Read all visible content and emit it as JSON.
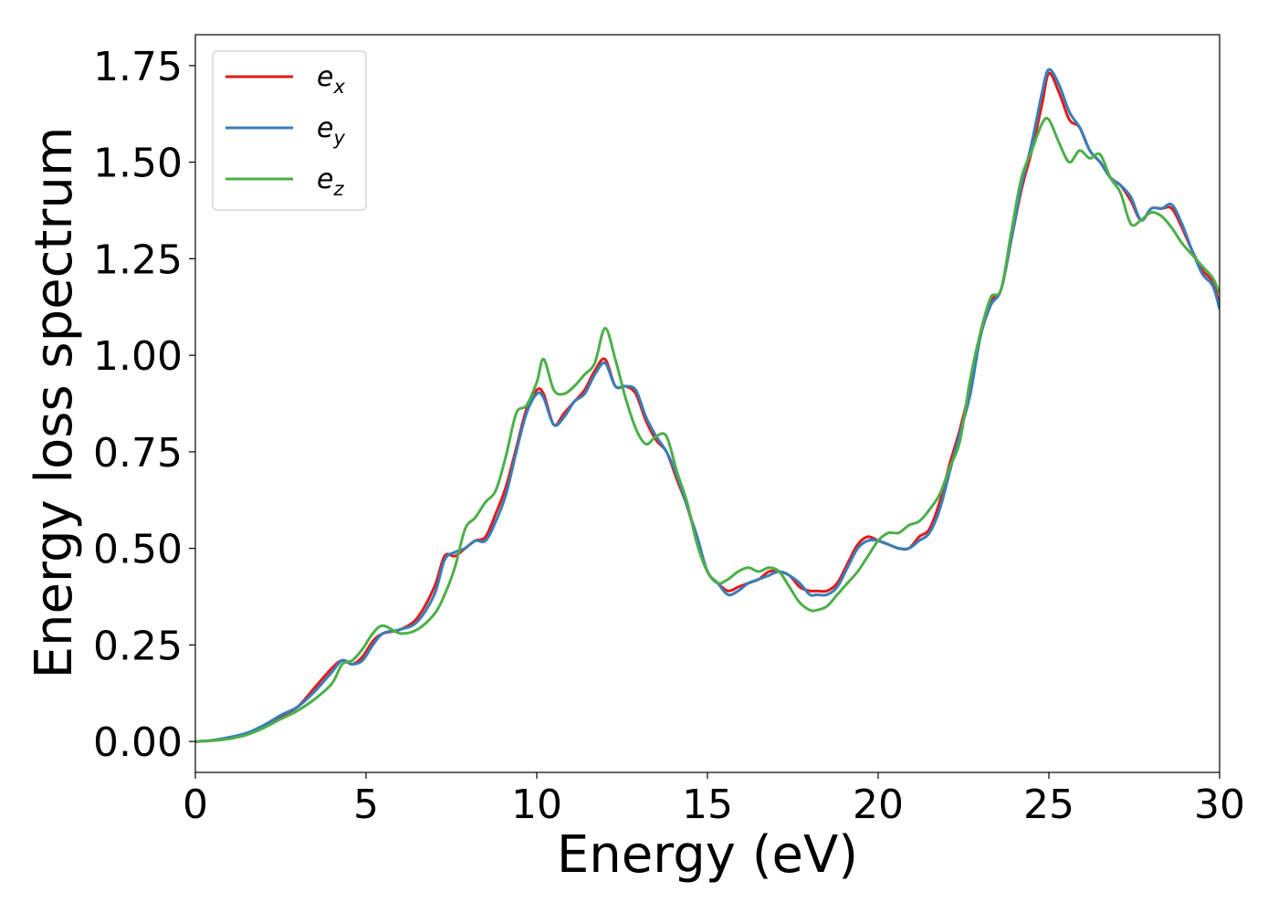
{
  "chart_data": {
    "type": "line",
    "title": "",
    "xlabel": "Energy (eV)",
    "ylabel": "Energy loss spectrum",
    "xlim": [
      0,
      30
    ],
    "ylim": [
      -0.08,
      1.83
    ],
    "x_ticks": [
      "0",
      "5",
      "10",
      "15",
      "20",
      "25",
      "30"
    ],
    "y_ticks": [
      "0.00",
      "0.25",
      "0.50",
      "0.75",
      "1.00",
      "1.25",
      "1.50",
      "1.75"
    ],
    "grid": false,
    "legend_position": "top-left",
    "series": [
      {
        "name": "e",
        "subscript": "x",
        "color": "#e41a1c",
        "x": [
          0,
          0.5,
          1,
          1.5,
          2,
          2.5,
          3,
          3.5,
          4,
          4.3,
          4.6,
          4.9,
          5.2,
          5.5,
          6,
          6.5,
          7,
          7.3,
          7.6,
          7.9,
          8.2,
          8.5,
          8.8,
          9.1,
          9.4,
          9.7,
          10,
          10.2,
          10.5,
          10.8,
          11.1,
          11.4,
          11.7,
          12,
          12.3,
          12.6,
          12.9,
          13.2,
          13.5,
          13.8,
          14.1,
          14.4,
          14.7,
          15,
          15.3,
          15.6,
          15.9,
          16.2,
          16.5,
          16.8,
          17.1,
          17.4,
          17.7,
          18,
          18.2,
          18.5,
          18.8,
          19.1,
          19.4,
          19.7,
          20,
          20.3,
          20.6,
          20.9,
          21.2,
          21.5,
          21.8,
          22.1,
          22.4,
          22.7,
          23,
          23.3,
          23.6,
          23.9,
          24.2,
          24.5,
          24.8,
          25,
          25.3,
          25.6,
          25.9,
          26.2,
          26.5,
          26.8,
          27.1,
          27.4,
          27.7,
          28,
          28.3,
          28.6,
          28.9,
          29.2,
          29.5,
          29.8,
          30
        ],
        "values": [
          0,
          0.003,
          0.01,
          0.02,
          0.04,
          0.065,
          0.09,
          0.14,
          0.19,
          0.21,
          0.2,
          0.22,
          0.26,
          0.28,
          0.29,
          0.32,
          0.4,
          0.48,
          0.48,
          0.5,
          0.52,
          0.53,
          0.59,
          0.66,
          0.76,
          0.86,
          0.91,
          0.9,
          0.82,
          0.85,
          0.88,
          0.91,
          0.96,
          0.99,
          0.92,
          0.92,
          0.9,
          0.83,
          0.78,
          0.75,
          0.68,
          0.61,
          0.52,
          0.44,
          0.41,
          0.39,
          0.4,
          0.41,
          0.42,
          0.44,
          0.44,
          0.43,
          0.4,
          0.39,
          0.39,
          0.39,
          0.41,
          0.46,
          0.51,
          0.53,
          0.52,
          0.51,
          0.5,
          0.5,
          0.53,
          0.55,
          0.62,
          0.72,
          0.81,
          0.92,
          1.06,
          1.14,
          1.17,
          1.3,
          1.43,
          1.53,
          1.65,
          1.73,
          1.68,
          1.61,
          1.59,
          1.53,
          1.5,
          1.46,
          1.44,
          1.4,
          1.35,
          1.38,
          1.38,
          1.38,
          1.33,
          1.27,
          1.22,
          1.19,
          1.13
        ]
      },
      {
        "name": "e",
        "subscript": "y",
        "color": "#377eb8",
        "x": [
          0,
          0.5,
          1,
          1.5,
          2,
          2.5,
          3,
          3.5,
          4,
          4.3,
          4.6,
          4.9,
          5.2,
          5.5,
          6,
          6.5,
          7,
          7.3,
          7.6,
          7.9,
          8.2,
          8.5,
          8.8,
          9.1,
          9.4,
          9.7,
          10,
          10.2,
          10.5,
          10.8,
          11.1,
          11.4,
          11.7,
          12,
          12.3,
          12.6,
          12.9,
          13.2,
          13.5,
          13.8,
          14.1,
          14.4,
          14.7,
          15,
          15.3,
          15.6,
          15.9,
          16.2,
          16.5,
          16.8,
          17.1,
          17.4,
          17.7,
          18,
          18.2,
          18.5,
          18.8,
          19.1,
          19.4,
          19.7,
          20,
          20.3,
          20.6,
          20.9,
          21.2,
          21.5,
          21.8,
          22.1,
          22.4,
          22.7,
          23,
          23.3,
          23.6,
          23.9,
          24.2,
          24.5,
          24.8,
          25,
          25.3,
          25.6,
          25.9,
          26.2,
          26.5,
          26.8,
          27.1,
          27.4,
          27.7,
          28,
          28.3,
          28.6,
          28.9,
          29.2,
          29.5,
          29.8,
          30
        ],
        "values": [
          0,
          0.003,
          0.011,
          0.022,
          0.042,
          0.068,
          0.09,
          0.13,
          0.18,
          0.21,
          0.2,
          0.21,
          0.25,
          0.28,
          0.29,
          0.31,
          0.38,
          0.47,
          0.49,
          0.5,
          0.52,
          0.52,
          0.57,
          0.64,
          0.75,
          0.85,
          0.9,
          0.89,
          0.82,
          0.84,
          0.88,
          0.9,
          0.95,
          0.98,
          0.92,
          0.92,
          0.91,
          0.84,
          0.79,
          0.75,
          0.69,
          0.61,
          0.53,
          0.44,
          0.41,
          0.38,
          0.39,
          0.41,
          0.42,
          0.43,
          0.44,
          0.43,
          0.41,
          0.38,
          0.38,
          0.38,
          0.4,
          0.45,
          0.5,
          0.52,
          0.52,
          0.51,
          0.5,
          0.5,
          0.52,
          0.54,
          0.6,
          0.7,
          0.8,
          0.9,
          1.05,
          1.13,
          1.17,
          1.3,
          1.44,
          1.55,
          1.68,
          1.74,
          1.7,
          1.63,
          1.59,
          1.53,
          1.5,
          1.46,
          1.44,
          1.41,
          1.35,
          1.38,
          1.38,
          1.39,
          1.34,
          1.27,
          1.21,
          1.18,
          1.12
        ]
      },
      {
        "name": "e",
        "subscript": "z",
        "color": "#4daf4a",
        "x": [
          0,
          0.5,
          1,
          1.5,
          2,
          2.5,
          3,
          3.5,
          4,
          4.3,
          4.6,
          4.9,
          5.2,
          5.5,
          6,
          6.5,
          7,
          7.3,
          7.6,
          7.9,
          8.2,
          8.5,
          8.8,
          9.1,
          9.4,
          9.7,
          10,
          10.2,
          10.5,
          10.8,
          11.1,
          11.4,
          11.7,
          12,
          12.3,
          12.6,
          12.9,
          13.2,
          13.5,
          13.8,
          14.1,
          14.4,
          14.7,
          15,
          15.3,
          15.6,
          15.9,
          16.2,
          16.5,
          16.8,
          17.1,
          17.4,
          17.7,
          18,
          18.2,
          18.5,
          18.8,
          19.1,
          19.4,
          19.7,
          20,
          20.3,
          20.6,
          20.9,
          21.2,
          21.5,
          21.8,
          22.1,
          22.4,
          22.7,
          23,
          23.3,
          23.6,
          23.9,
          24.2,
          24.5,
          24.8,
          25,
          25.3,
          25.6,
          25.9,
          26.2,
          26.5,
          26.8,
          27.1,
          27.4,
          27.7,
          28,
          28.3,
          28.6,
          28.9,
          29.2,
          29.5,
          29.8,
          30
        ],
        "values": [
          0,
          0.002,
          0.007,
          0.017,
          0.035,
          0.058,
          0.08,
          0.11,
          0.15,
          0.2,
          0.21,
          0.24,
          0.28,
          0.3,
          0.28,
          0.29,
          0.33,
          0.38,
          0.45,
          0.55,
          0.58,
          0.62,
          0.65,
          0.74,
          0.85,
          0.87,
          0.93,
          0.99,
          0.91,
          0.9,
          0.92,
          0.95,
          0.98,
          1.07,
          0.99,
          0.89,
          0.81,
          0.77,
          0.79,
          0.79,
          0.7,
          0.62,
          0.51,
          0.44,
          0.41,
          0.42,
          0.44,
          0.45,
          0.44,
          0.45,
          0.44,
          0.4,
          0.36,
          0.34,
          0.34,
          0.35,
          0.38,
          0.41,
          0.44,
          0.48,
          0.52,
          0.54,
          0.54,
          0.56,
          0.57,
          0.6,
          0.64,
          0.71,
          0.78,
          0.94,
          1.06,
          1.15,
          1.17,
          1.32,
          1.46,
          1.53,
          1.6,
          1.61,
          1.55,
          1.5,
          1.53,
          1.51,
          1.52,
          1.46,
          1.42,
          1.34,
          1.35,
          1.37,
          1.36,
          1.33,
          1.29,
          1.26,
          1.23,
          1.2,
          1.16
        ]
      }
    ]
  }
}
